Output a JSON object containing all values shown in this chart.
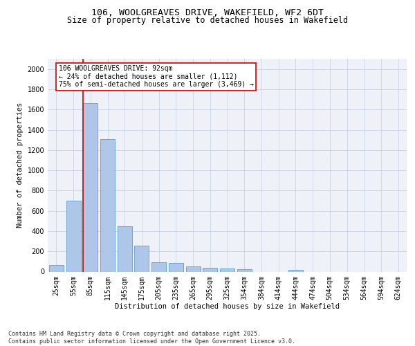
{
  "title_line1": "106, WOOLGREAVES DRIVE, WAKEFIELD, WF2 6DT",
  "title_line2": "Size of property relative to detached houses in Wakefield",
  "xlabel": "Distribution of detached houses by size in Wakefield",
  "ylabel": "Number of detached properties",
  "categories": [
    "25sqm",
    "55sqm",
    "85sqm",
    "115sqm",
    "145sqm",
    "175sqm",
    "205sqm",
    "235sqm",
    "265sqm",
    "295sqm",
    "325sqm",
    "354sqm",
    "384sqm",
    "414sqm",
    "444sqm",
    "474sqm",
    "504sqm",
    "534sqm",
    "564sqm",
    "594sqm",
    "624sqm"
  ],
  "values": [
    65,
    700,
    1660,
    1310,
    450,
    255,
    90,
    85,
    50,
    40,
    30,
    25,
    0,
    0,
    20,
    0,
    0,
    0,
    0,
    0,
    0
  ],
  "bar_color": "#aec6e8",
  "bar_edge_color": "#5a9fd4",
  "vline_index": 1.575,
  "annotation_text": "106 WOOLGREAVES DRIVE: 92sqm\n← 24% of detached houses are smaller (1,112)\n75% of semi-detached houses are larger (3,469) →",
  "annotation_box_color": "#ffffff",
  "annotation_box_edge_color": "#cc0000",
  "vline_color": "#cc0000",
  "ylim": [
    0,
    2100
  ],
  "yticks": [
    0,
    200,
    400,
    600,
    800,
    1000,
    1200,
    1400,
    1600,
    1800,
    2000
  ],
  "grid_color": "#d0d8e8",
  "background_color": "#eef2f8",
  "footer_text": "Contains HM Land Registry data © Crown copyright and database right 2025.\nContains public sector information licensed under the Open Government Licence v3.0.",
  "title_fontsize": 9.5,
  "subtitle_fontsize": 8.5,
  "axis_label_fontsize": 7.5,
  "tick_fontsize": 7,
  "annotation_fontsize": 7,
  "footer_fontsize": 6
}
